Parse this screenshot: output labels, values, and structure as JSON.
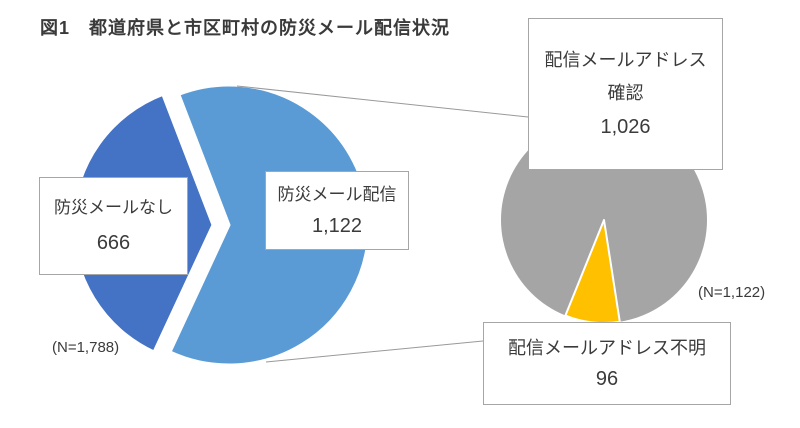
{
  "figure": {
    "title": "図1　都道府県と市区町村の防災メール配信状況"
  },
  "chart_data": [
    {
      "type": "pie",
      "name": "disaster-mail-delivery-overall",
      "n_label": "(N=1,788)",
      "total": 1788,
      "start_angle": -21,
      "legend": "none",
      "labels_style": "callout-boxes",
      "slices": [
        {
          "label": "防災メール配信",
          "label_lines": [
            "防災メール配信"
          ],
          "value": 1122,
          "display": "1,122",
          "color": "#5B9BD5"
        },
        {
          "label": "防災メールなし",
          "label_lines": [
            "防災メールなし"
          ],
          "value": 666,
          "display": "666",
          "color": "#4472C4"
        }
      ]
    },
    {
      "type": "pie",
      "name": "delivery-mail-address-breakdown",
      "n_label": "(N=1,122)",
      "total": 1122,
      "start_angle": 202,
      "legend": "none",
      "labels_style": "callout-boxes",
      "slices": [
        {
          "label": "配信メールアドレス確認",
          "label_lines": [
            "配信メールアドレス",
            "確認"
          ],
          "value": 1026,
          "display": "1,026",
          "color": "#A5A5A5"
        },
        {
          "label": "配信メールアドレス不明",
          "label_lines": [
            "配信メールアドレス不明"
          ],
          "value": 96,
          "display": "96",
          "color": "#FFC000"
        }
      ]
    }
  ]
}
